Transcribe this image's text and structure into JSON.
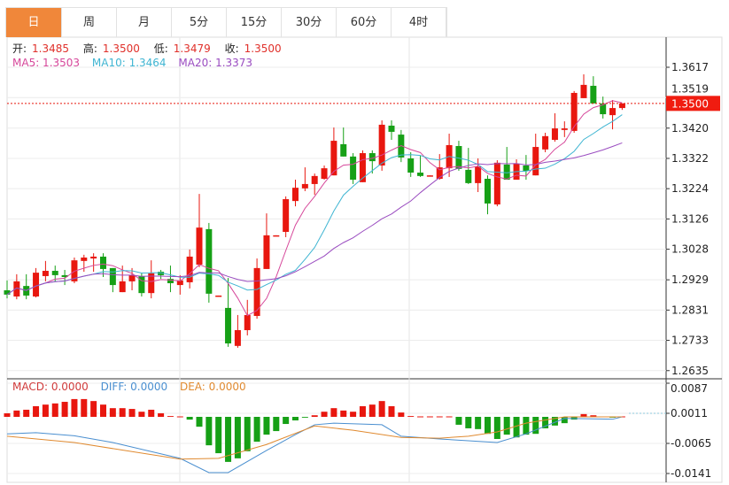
{
  "tabs": [
    {
      "label": "日",
      "active": true
    },
    {
      "label": "周",
      "active": false
    },
    {
      "label": "月",
      "active": false
    },
    {
      "label": "5分",
      "active": false
    },
    {
      "label": "15分",
      "active": false
    },
    {
      "label": "30分",
      "active": false
    },
    {
      "label": "60分",
      "active": false
    },
    {
      "label": "4时",
      "active": false
    }
  ],
  "ohlc_info": {
    "open_label": "开:",
    "open": "1.3485",
    "high_label": "高:",
    "high": "1.3500",
    "low_label": "低:",
    "low": "1.3479",
    "close_label": "收:",
    "close": "1.3500"
  },
  "ma_info": {
    "ma5": "MA5: 1.3503",
    "ma10": "MA10: 1.3464",
    "ma20": "MA20: 1.3373"
  },
  "macd_info": {
    "macd": "MACD: 0.0000",
    "diff": "DIFF: 0.0000",
    "dea": "DEA: 0.0000"
  },
  "current_price": "1.3500",
  "colors": {
    "up": "#e8170f",
    "down": "#16a016",
    "active_tab": "#f0873a",
    "ma5": "#d6479a",
    "ma10": "#3fb5d2",
    "ma20": "#9a4cc0",
    "diff": "#4a8fd0",
    "dea": "#e08a30"
  },
  "chart_data": [
    {
      "type": "candlestick",
      "title": "",
      "y_ticks": [
        "1.3617",
        "1.3519",
        "1.3420",
        "1.3322",
        "1.3224",
        "1.3126",
        "1.3028",
        "1.2929",
        "1.2831",
        "1.2733",
        "1.2635"
      ],
      "ylim": [
        1.26,
        1.372
      ],
      "grid": true,
      "fields": [
        "open",
        "high",
        "low",
        "close"
      ],
      "candles": [
        [
          1.2895,
          1.2927,
          1.2869,
          1.2881
        ],
        [
          1.2875,
          1.2947,
          1.2866,
          1.2924
        ],
        [
          1.2909,
          1.2947,
          1.2866,
          1.2878
        ],
        [
          1.2875,
          1.2967,
          1.2872,
          1.2952
        ],
        [
          1.2941,
          1.299,
          1.2924,
          1.2958
        ],
        [
          1.2958,
          1.2975,
          1.2924,
          1.2944
        ],
        [
          1.2944,
          1.2961,
          1.2912,
          1.2938
        ],
        [
          1.2924,
          1.3001,
          1.2918,
          1.2992
        ],
        [
          1.299,
          1.301,
          1.2955,
          1.3001
        ],
        [
          1.2998,
          1.3015,
          1.2955,
          1.3004
        ],
        [
          1.3004,
          1.3015,
          1.2938,
          1.2964
        ],
        [
          1.2967,
          1.2967,
          1.2889,
          1.2912
        ],
        [
          1.2889,
          1.2975,
          1.2889,
          1.2924
        ],
        [
          1.2924,
          1.2967,
          1.2895,
          1.2944
        ],
        [
          1.2941,
          1.295,
          1.2875,
          1.2886
        ],
        [
          1.2886,
          1.2992,
          1.2869,
          1.295
        ],
        [
          1.2955,
          1.2961,
          1.2932,
          1.2944
        ],
        [
          1.2932,
          1.2975,
          1.2889,
          1.2918
        ],
        [
          1.2912,
          1.2944,
          1.2881,
          1.2927
        ],
        [
          1.2921,
          1.3027,
          1.2901,
          1.3004
        ],
        [
          1.2978,
          1.3207,
          1.297,
          1.3098
        ],
        [
          1.3093,
          1.3113,
          1.2855,
          1.2884
        ],
        [
          1.2875,
          1.2878,
          1.2875,
          1.2878
        ],
        [
          1.2838,
          1.2935,
          1.2712,
          1.2723
        ],
        [
          1.2715,
          1.2815,
          1.2709,
          1.2766
        ],
        [
          1.2766,
          1.2864,
          1.2749,
          1.2815
        ],
        [
          1.2812,
          1.2998,
          1.2803,
          1.2967
        ],
        [
          1.2964,
          1.3144,
          1.2964,
          1.3073
        ],
        [
          1.307,
          1.3073,
          1.307,
          1.3073
        ],
        [
          1.3084,
          1.3199,
          1.3067,
          1.319
        ],
        [
          1.3184,
          1.3253,
          1.3167,
          1.3227
        ],
        [
          1.3225,
          1.3293,
          1.3216,
          1.3239
        ],
        [
          1.3239,
          1.3273,
          1.3204,
          1.3265
        ],
        [
          1.3256,
          1.3299,
          1.3253,
          1.329
        ],
        [
          1.3267,
          1.3422,
          1.3267,
          1.3379
        ],
        [
          1.3368,
          1.3422,
          1.3328,
          1.3328
        ],
        [
          1.3328,
          1.3339,
          1.3239,
          1.3253
        ],
        [
          1.3245,
          1.3348,
          1.3245,
          1.3339
        ],
        [
          1.3339,
          1.3348,
          1.3273,
          1.3313
        ],
        [
          1.3299,
          1.3445,
          1.3282,
          1.3431
        ],
        [
          1.3428,
          1.3445,
          1.3382,
          1.3408
        ],
        [
          1.3399,
          1.3414,
          1.331,
          1.3325
        ],
        [
          1.3322,
          1.3342,
          1.3262,
          1.3276
        ],
        [
          1.3276,
          1.3331,
          1.3262,
          1.3265
        ],
        [
          1.3265,
          1.3267,
          1.3265,
          1.3267
        ],
        [
          1.3256,
          1.3336,
          1.3253,
          1.3293
        ],
        [
          1.329,
          1.3402,
          1.3262,
          1.3365
        ],
        [
          1.3362,
          1.3379,
          1.3282,
          1.3288
        ],
        [
          1.3285,
          1.3356,
          1.3239,
          1.3242
        ],
        [
          1.3242,
          1.3322,
          1.3213,
          1.3296
        ],
        [
          1.3256,
          1.3267,
          1.3141,
          1.3176
        ],
        [
          1.3173,
          1.3316,
          1.3167,
          1.3308
        ],
        [
          1.3302,
          1.3359,
          1.3253,
          1.3253
        ],
        [
          1.3253,
          1.3319,
          1.3253,
          1.3305
        ],
        [
          1.3299,
          1.3333,
          1.3253,
          1.3282
        ],
        [
          1.3267,
          1.3402,
          1.3267,
          1.3359
        ],
        [
          1.3351,
          1.3405,
          1.3342,
          1.3394
        ],
        [
          1.3382,
          1.3468,
          1.3376,
          1.3419
        ],
        [
          1.3414,
          1.3442,
          1.3391,
          1.3419
        ],
        [
          1.3411,
          1.354,
          1.3405,
          1.3534
        ],
        [
          1.3517,
          1.3594,
          1.3517,
          1.356
        ],
        [
          1.3557,
          1.3588,
          1.35,
          1.35
        ],
        [
          1.35,
          1.3522,
          1.3451,
          1.3465
        ],
        [
          1.3462,
          1.3511,
          1.3416,
          1.3485
        ],
        [
          1.3485,
          1.35,
          1.3479,
          1.35
        ]
      ],
      "moving_averages": [
        5,
        10,
        20
      ],
      "current_price_line": 1.35
    },
    {
      "type": "bar",
      "title": "",
      "y_ticks": [
        "0.0087",
        "0.0011",
        "-0.0065",
        "-0.0141"
      ],
      "ylim": [
        -0.016,
        0.0095
      ],
      "grid": true,
      "histogram": [
        0.0009,
        0.0016,
        0.0018,
        0.0027,
        0.0031,
        0.0034,
        0.0038,
        0.0045,
        0.0045,
        0.004,
        0.0031,
        0.0022,
        0.0022,
        0.002,
        0.0013,
        0.0018,
        0.0009,
        0.0002,
        0.0,
        -0.0007,
        -0.0025,
        -0.0072,
        -0.0092,
        -0.0114,
        -0.0105,
        -0.0087,
        -0.0063,
        -0.0045,
        -0.0036,
        -0.0018,
        -0.0009,
        -0.0002,
        0.0004,
        0.0013,
        0.0022,
        0.0016,
        0.0013,
        0.0027,
        0.0031,
        0.004,
        0.0027,
        0.0011,
        0.0002,
        0.0001,
        0.0001,
        0.0001,
        0.0,
        -0.002,
        -0.0029,
        -0.0031,
        -0.0043,
        -0.0056,
        -0.0045,
        -0.0052,
        -0.0045,
        -0.0043,
        -0.0029,
        -0.0022,
        -0.0016,
        -0.0007,
        0.0007,
        0.0004,
        -0.0001,
        -0.0002,
        0.0
      ],
      "diff": [
        [
          0,
          -0.0043
        ],
        [
          3,
          -0.004
        ],
        [
          7,
          -0.0048
        ],
        [
          11,
          -0.0065
        ],
        [
          18,
          -0.0105
        ],
        [
          21,
          -0.0141
        ],
        [
          23,
          -0.0141
        ],
        [
          27,
          -0.0085
        ],
        [
          30,
          -0.0045
        ],
        [
          32,
          -0.002
        ],
        [
          34,
          -0.0016
        ],
        [
          39,
          -0.002
        ],
        [
          41,
          -0.0049
        ],
        [
          45,
          -0.0056
        ],
        [
          51,
          -0.0065
        ],
        [
          54,
          -0.0043
        ],
        [
          58,
          -0.0004
        ],
        [
          63,
          -0.0006
        ],
        [
          64,
          0.0
        ]
      ],
      "dea": [
        [
          0,
          -0.0049
        ],
        [
          7,
          -0.0065
        ],
        [
          18,
          -0.0107
        ],
        [
          22,
          -0.0105
        ],
        [
          27,
          -0.007
        ],
        [
          32,
          -0.0023
        ],
        [
          36,
          -0.0034
        ],
        [
          41,
          -0.0052
        ],
        [
          45,
          -0.0054
        ],
        [
          48,
          -0.0049
        ],
        [
          51,
          -0.0038
        ],
        [
          54,
          -0.0016
        ],
        [
          58,
          0.0
        ],
        [
          64,
          0.0
        ]
      ]
    }
  ]
}
